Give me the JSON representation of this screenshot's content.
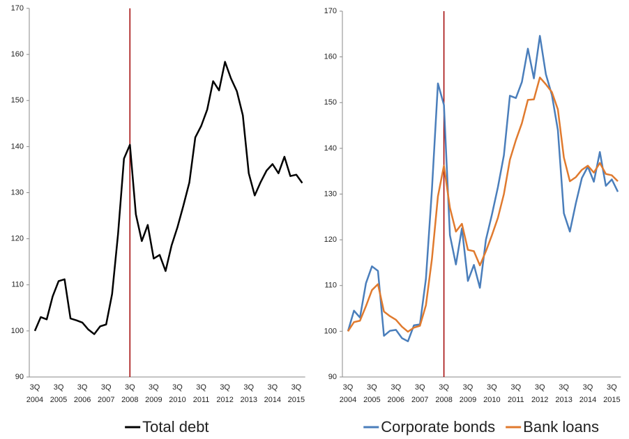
{
  "chart_data": [
    {
      "type": "line",
      "categories": [
        [
          "3Q",
          "2004"
        ],
        null,
        null,
        null,
        [
          "3Q",
          "2005"
        ],
        null,
        null,
        null,
        [
          "3Q",
          "2006"
        ],
        null,
        null,
        null,
        [
          "3Q",
          "2007"
        ],
        null,
        null,
        null,
        [
          "3Q",
          "2008"
        ],
        null,
        null,
        null,
        [
          "3Q",
          "2009"
        ],
        null,
        null,
        null,
        [
          "3Q",
          "2010"
        ],
        null,
        null,
        null,
        [
          "3Q",
          "2011"
        ],
        null,
        null,
        null,
        [
          "3Q",
          "2012"
        ],
        null,
        null,
        null,
        [
          "3Q",
          "2013"
        ],
        null,
        null,
        null,
        [
          "3Q",
          "2014"
        ],
        null,
        null,
        null,
        [
          "3Q",
          "2015"
        ],
        null
      ],
      "series": [
        {
          "name": "Total debt",
          "color": "#000000",
          "values": [
            100,
            103,
            102.5,
            107.5,
            110.8,
            111.2,
            102.7,
            102.3,
            101.8,
            100.3,
            99.3,
            101,
            101.4,
            108,
            121,
            137.4,
            140.4,
            125.3,
            119.5,
            123,
            115.7,
            116.5,
            113,
            118.5,
            122.5,
            127.2,
            132.2,
            142,
            144.5,
            148,
            154.2,
            152.2,
            158.4,
            154.8,
            152,
            146.8,
            134.2,
            129.4,
            132.3,
            134.8,
            136.2,
            134.2,
            137.8,
            133.6,
            133.9,
            132.1
          ]
        }
      ],
      "ylim": [
        90,
        170
      ],
      "yticks": [
        90,
        100,
        110,
        120,
        130,
        140,
        150,
        160,
        170
      ],
      "legend": "bottom",
      "vline_index": 16,
      "vline_color": "#a00000"
    },
    {
      "type": "line",
      "categories": [
        [
          "3Q",
          "2004"
        ],
        null,
        null,
        null,
        [
          "3Q",
          "2005"
        ],
        null,
        null,
        null,
        [
          "3Q",
          "2006"
        ],
        null,
        null,
        null,
        [
          "3Q",
          "2007"
        ],
        null,
        null,
        null,
        [
          "3Q",
          "2008"
        ],
        null,
        null,
        null,
        [
          "3Q",
          "2009"
        ],
        null,
        null,
        null,
        [
          "3Q",
          "2010"
        ],
        null,
        null,
        null,
        [
          "3Q",
          "2011"
        ],
        null,
        null,
        null,
        [
          "3Q",
          "2012"
        ],
        null,
        null,
        null,
        [
          "3Q",
          "2013"
        ],
        null,
        null,
        null,
        [
          "3Q",
          "2014"
        ],
        null,
        null,
        null,
        [
          "3Q",
          "2015"
        ],
        null
      ],
      "series": [
        {
          "name": "Corporate bonds",
          "color": "#4a7ebb",
          "values": [
            100,
            104.5,
            103,
            110.5,
            114.2,
            113.2,
            99,
            100.1,
            100.3,
            98.5,
            97.8,
            101.3,
            101.5,
            111.5,
            131,
            154.2,
            149.5,
            121,
            114.6,
            122.5,
            111,
            114.5,
            109.5,
            120,
            125.5,
            131.5,
            138.5,
            151.5,
            151,
            154.5,
            161.8,
            155.3,
            164.6,
            156.2,
            151.7,
            144,
            125.8,
            121.8,
            128,
            133.5,
            136,
            132.7,
            139.2,
            131.8,
            133.2,
            130.5
          ]
        },
        {
          "name": "Bank loans",
          "color": "#e07a2e",
          "values": [
            100,
            102,
            102.3,
            105.5,
            109,
            110.3,
            104.3,
            103.3,
            102.5,
            101,
            99.9,
            100.8,
            101.2,
            105.7,
            115.8,
            129.5,
            136.2,
            127,
            121.8,
            123.5,
            117.8,
            117.5,
            114.4,
            117.5,
            121,
            124.8,
            130,
            137.5,
            141.8,
            145.5,
            150.6,
            150.7,
            155.5,
            154,
            152.3,
            148.5,
            138,
            132.8,
            133.7,
            135.3,
            136.2,
            134.7,
            136.8,
            134.4,
            134.1,
            132.8
          ]
        }
      ],
      "ylim": [
        90,
        170
      ],
      "yticks": [
        90,
        100,
        110,
        120,
        130,
        140,
        150,
        160,
        170
      ],
      "legend": "bottom",
      "vline_index": 16,
      "vline_color": "#a00000"
    }
  ]
}
